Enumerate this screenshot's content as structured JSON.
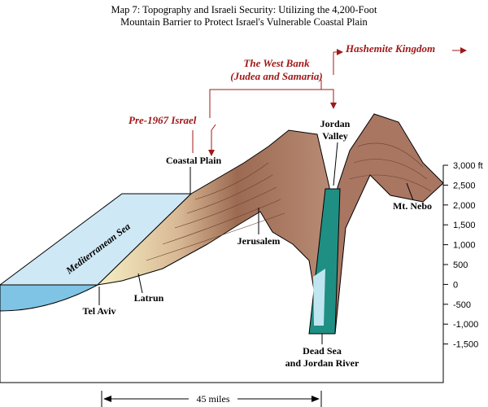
{
  "header": {
    "title": [
      "Map 7: Topography and Israeli Security: Utilizing the 4,200-Foot",
      "Mountain Barrier to Protect Israel's Vulnerable Coastal Plain"
    ]
  },
  "regions": {
    "pre_1967": "Pre-1967 Israel",
    "west_bank": [
      "The West Bank",
      "(Judea and Samaria)"
    ],
    "hashemite": "Hashemite Kingdom"
  },
  "places": {
    "coastal_plain": "Coastal Plain",
    "jordan_valley": [
      "Jordan",
      "Valley"
    ],
    "mt_nebo": "Mt. Nebo",
    "jerusalem": "Jerusalem",
    "sea": "Mediterranean Sea",
    "latrun": "Latrun",
    "tel_aviv": "Tel Aviv",
    "dead_sea": [
      "Dead Sea",
      "and Jordan River"
    ]
  },
  "scale": [
    "3,000 ft",
    "2,500",
    "2,000",
    "1,500",
    "1,000",
    "500",
    "0",
    "-500",
    "-1,000",
    "-1,500"
  ],
  "distance": "45 miles"
}
